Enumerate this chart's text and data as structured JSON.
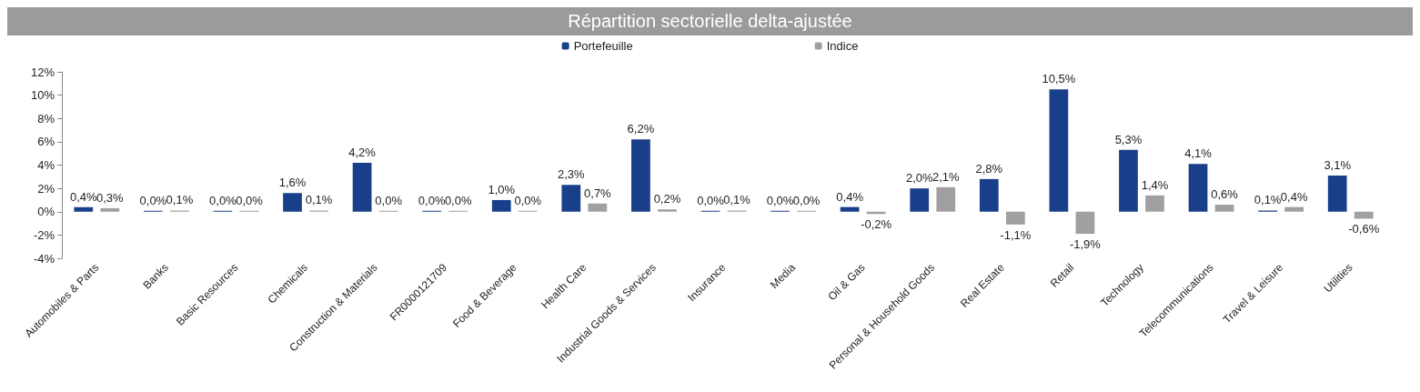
{
  "chart_data": {
    "type": "bar",
    "title": "Répartition sectorielle delta-ajustée",
    "categories": [
      "Automobiles & Parts",
      "Banks",
      "Basic Resources",
      "Chemicals",
      "Construction & Materials",
      "FR0000121709",
      "Food & Beverage",
      "Health Care",
      "Industrial Goods & Services",
      "Insurance",
      "Media",
      "Oil & Gas",
      "Personal & Household Goods",
      "Real Estate",
      "Retail",
      "Technology",
      "Telecommunications",
      "Travel & Leisure",
      "Utilities"
    ],
    "series": [
      {
        "name": "Portefeuille",
        "color": "#1a3f8a",
        "values": [
          0.4,
          0.0,
          0.0,
          1.6,
          4.2,
          0.0,
          1.0,
          2.3,
          6.2,
          0.0,
          0.0,
          0.4,
          2.0,
          2.8,
          10.5,
          5.3,
          4.1,
          0.1,
          3.1
        ],
        "value_labels": [
          "0,4%",
          "0,0%",
          "0,0%",
          "1,6%",
          "4,2%",
          "0,0%",
          "1,0%",
          "2,3%",
          "6,2%",
          "0,0%",
          "0,0%",
          "0,4%",
          "2,0%",
          "2,8%",
          "10,5%",
          "5,3%",
          "4,1%",
          "0,1%",
          "3,1%"
        ]
      },
      {
        "name": "Indice",
        "color": "#a0a0a0",
        "values": [
          0.3,
          0.1,
          0.0,
          0.1,
          0.0,
          0.0,
          0.0,
          0.7,
          0.2,
          0.1,
          0.0,
          -0.2,
          2.1,
          -1.1,
          -1.9,
          1.4,
          0.6,
          0.4,
          -0.6
        ],
        "value_labels": [
          "0,3%",
          "0,1%",
          "0,0%",
          "0,1%",
          "0,0%",
          "0,0%",
          "0,0%",
          "0,7%",
          "0,2%",
          "0,1%",
          "0,0%",
          "-0,2%",
          "2,1%",
          "-1,1%",
          "-1,9%",
          "1,4%",
          "0,6%",
          "0,4%",
          "-0,6%"
        ]
      }
    ],
    "ylim": [
      -4,
      12
    ],
    "yticks": [
      {
        "value": -4,
        "label": "-4%"
      },
      {
        "value": -2,
        "label": "-2%"
      },
      {
        "value": 0,
        "label": "0%"
      },
      {
        "value": 2,
        "label": "2%"
      },
      {
        "value": 4,
        "label": "4%"
      },
      {
        "value": 6,
        "label": "6%"
      },
      {
        "value": 8,
        "label": "8%"
      },
      {
        "value": 10,
        "label": "10%"
      },
      {
        "value": 12,
        "label": "12%"
      }
    ],
    "grid": false,
    "legend": "top"
  }
}
